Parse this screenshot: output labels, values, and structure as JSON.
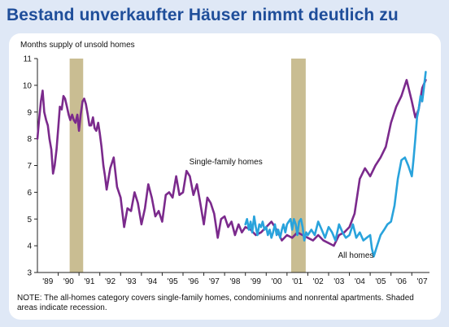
{
  "page": {
    "title": "Bestand unverkaufter Häuser nimmt deutlich zu"
  },
  "chart_data": {
    "type": "line",
    "title": "Bestand unverkaufter Häuser nimmt deutlich zu",
    "ylabel": "Months supply of unsold homes",
    "ylim": [
      3,
      11
    ],
    "yticks": [
      "3",
      "4",
      "5",
      "6",
      "7",
      "8",
      "9",
      "10",
      "11"
    ],
    "xlim": [
      1989.0,
      2007.85
    ],
    "xtick_labels": [
      "'89",
      "'90",
      "'91",
      "'92",
      "'93",
      "'94",
      "'95",
      "'96",
      "'97",
      "'98",
      "'99",
      "'00",
      "'01",
      "'02",
      "'03",
      "'04",
      "'05",
      "'06",
      "'07"
    ],
    "recessions": [
      [
        1990.55,
        1991.2
      ],
      [
        2001.2,
        2001.9
      ]
    ],
    "annotations": [
      {
        "text": "Single-family homes",
        "series": "Single-family homes"
      },
      {
        "text": "All homes",
        "series": "All homes"
      }
    ],
    "note": "NOTE: The all-homes category covers single-family homes, condominiums and nonrental apartments. Shaded areas indicate recession.",
    "colors": {
      "single_family": "#7b2a8c",
      "all_homes": "#29a3dc",
      "recession": "#c9bd92",
      "title": "#1f4e9a",
      "background": "#dfe8f6"
    },
    "series": [
      {
        "name": "Single-family homes",
        "x": [
          1989.0,
          1989.08,
          1989.17,
          1989.25,
          1989.33,
          1989.42,
          1989.5,
          1989.58,
          1989.67,
          1989.75,
          1989.83,
          1989.92,
          1990.0,
          1990.08,
          1990.17,
          1990.25,
          1990.33,
          1990.42,
          1990.5,
          1990.58,
          1990.67,
          1990.75,
          1990.83,
          1990.92,
          1991.0,
          1991.08,
          1991.17,
          1991.25,
          1991.33,
          1991.42,
          1991.5,
          1991.58,
          1991.67,
          1991.75,
          1991.83,
          1991.92,
          1992.0,
          1992.08,
          1992.17,
          1992.25,
          1992.33,
          1992.5,
          1992.67,
          1992.83,
          1993.0,
          1993.17,
          1993.33,
          1993.5,
          1993.67,
          1993.83,
          1994.0,
          1994.17,
          1994.33,
          1994.5,
          1994.67,
          1994.83,
          1995.0,
          1995.17,
          1995.33,
          1995.5,
          1995.67,
          1995.83,
          1996.0,
          1996.17,
          1996.33,
          1996.5,
          1996.67,
          1996.83,
          1997.0,
          1997.17,
          1997.33,
          1997.5,
          1997.67,
          1997.83,
          1998.0,
          1998.17,
          1998.33,
          1998.5,
          1998.67,
          1998.83,
          1999.0,
          1999.25,
          1999.5,
          1999.75,
          2000.0,
          2000.25,
          2000.5,
          2000.75,
          2001.0,
          2001.25,
          2001.5,
          2001.75,
          2002.0,
          2002.25,
          2002.5,
          2002.75,
          2003.0,
          2003.25,
          2003.5,
          2003.75,
          2004.0,
          2004.25,
          2004.5,
          2004.75,
          2005.0,
          2005.25,
          2005.5,
          2005.75,
          2006.0,
          2006.25,
          2006.5,
          2006.75,
          2007.0,
          2007.17,
          2007.33,
          2007.5,
          2007.67
        ],
        "values": [
          8.0,
          8.7,
          9.4,
          9.8,
          9.0,
          8.7,
          8.5,
          8.0,
          7.6,
          6.7,
          7.0,
          7.6,
          8.4,
          9.2,
          9.1,
          9.6,
          9.5,
          9.2,
          8.9,
          8.7,
          8.9,
          8.7,
          8.6,
          8.9,
          8.3,
          8.9,
          9.4,
          9.5,
          9.3,
          8.9,
          8.5,
          8.5,
          8.8,
          8.4,
          8.3,
          8.6,
          8.2,
          7.7,
          7.0,
          6.6,
          6.1,
          6.9,
          7.3,
          6.2,
          5.8,
          4.7,
          5.4,
          5.3,
          6.0,
          5.6,
          4.8,
          5.4,
          6.3,
          5.8,
          5.1,
          5.3,
          4.9,
          5.9,
          6.0,
          5.8,
          6.6,
          5.9,
          6.0,
          6.8,
          6.6,
          5.9,
          6.3,
          5.6,
          4.8,
          5.8,
          5.6,
          5.2,
          4.3,
          5.0,
          5.1,
          4.7,
          4.9,
          4.4,
          4.8,
          4.5,
          4.7,
          4.6,
          4.4,
          4.5,
          4.7,
          4.9,
          4.6,
          4.2,
          4.4,
          4.3,
          4.5,
          4.4,
          4.3,
          4.2,
          4.4,
          4.2,
          4.1,
          4.0,
          4.4,
          4.5,
          4.7,
          5.2,
          6.5,
          6.9,
          6.6,
          7.0,
          7.3,
          7.7,
          8.6,
          9.2,
          9.6,
          10.2,
          9.4,
          8.8,
          9.1,
          9.9,
          10.2
        ]
      },
      {
        "name": "All homes",
        "x": [
          1999.0,
          1999.08,
          1999.17,
          1999.25,
          1999.33,
          1999.42,
          1999.5,
          1999.58,
          1999.67,
          1999.75,
          1999.83,
          1999.92,
          2000.0,
          2000.08,
          2000.17,
          2000.25,
          2000.33,
          2000.42,
          2000.5,
          2000.58,
          2000.67,
          2000.75,
          2000.83,
          2000.92,
          2001.0,
          2001.08,
          2001.17,
          2001.25,
          2001.33,
          2001.42,
          2001.5,
          2001.58,
          2001.67,
          2001.75,
          2001.83,
          2001.92,
          2002.0,
          2002.17,
          2002.33,
          2002.5,
          2002.67,
          2002.83,
          2003.0,
          2003.17,
          2003.33,
          2003.5,
          2003.67,
          2003.83,
          2004.0,
          2004.17,
          2004.33,
          2004.5,
          2004.67,
          2004.83,
          2005.0,
          2005.08,
          2005.17,
          2005.33,
          2005.5,
          2005.67,
          2005.83,
          2006.0,
          2006.17,
          2006.33,
          2006.5,
          2006.67,
          2006.83,
          2007.0,
          2007.08,
          2007.17,
          2007.25,
          2007.33,
          2007.42,
          2007.5,
          2007.58,
          2007.67
        ],
        "values": [
          4.8,
          5.0,
          4.6,
          4.9,
          4.5,
          5.1,
          4.7,
          4.4,
          4.8,
          4.7,
          4.9,
          4.6,
          4.7,
          4.4,
          4.6,
          4.3,
          4.5,
          4.8,
          4.4,
          4.6,
          4.3,
          4.6,
          4.8,
          4.5,
          4.8,
          4.9,
          5.0,
          4.6,
          5.0,
          4.8,
          4.4,
          4.9,
          5.0,
          4.7,
          4.2,
          4.5,
          4.4,
          4.6,
          4.4,
          4.9,
          4.6,
          4.3,
          4.7,
          4.5,
          4.2,
          4.8,
          4.5,
          4.3,
          4.4,
          4.8,
          4.3,
          4.5,
          4.2,
          4.3,
          4.4,
          3.9,
          3.6,
          4.0,
          4.4,
          4.6,
          4.8,
          4.9,
          5.5,
          6.5,
          7.2,
          7.3,
          7.0,
          6.6,
          7.2,
          8.0,
          8.8,
          9.1,
          9.6,
          9.4,
          9.9,
          10.5
        ]
      }
    ]
  }
}
